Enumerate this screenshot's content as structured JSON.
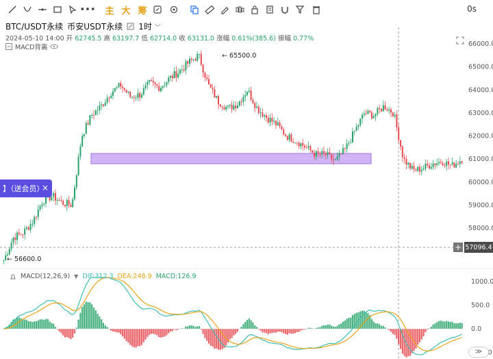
{
  "toolbar": {
    "indicator_main": "主",
    "indicator_big": "大",
    "indicator_chip": "筹",
    "more_label": "•••"
  },
  "interval": "0s",
  "title": {
    "symbol": "BTC/USDT永续",
    "exchange": "币安USDT永续",
    "timeframe": "1时"
  },
  "ohlc": {
    "date": "2024-05-10 14:00",
    "open_label": "开",
    "open": "62745.5",
    "high_label": "高",
    "high": "63197.7",
    "low_label": "低",
    "low": "62714.0",
    "close_label": "收",
    "close": "63131.0",
    "change_label": "涨幅",
    "change": "0.61%(385.6)",
    "amp_label": "振幅",
    "amp": "0.77%"
  },
  "overlay_label": "MACD背离",
  "popup": {
    "text": "】（送会员）",
    "close": "×"
  },
  "current_price": "57096.4",
  "plus_label": "+",
  "annotations": {
    "high_marker": "← 65500.0",
    "low_marker": "← 56600.0"
  },
  "price_axis": [
    "66000.0",
    "65000.0",
    "64000.0",
    "63000.0",
    "62000.0",
    "61000.0",
    "60000.0",
    "59000.0",
    "58000.0"
  ],
  "macd": {
    "name": "MACD(12,26,9)",
    "dif_label": "DIF:312.3",
    "dea_label": "DEA:248.9",
    "macd_label": "MACD:126.9",
    "axis": [
      "1000.0",
      "500.0",
      "0.0",
      "-500.0"
    ]
  },
  "scroll_label": "≫",
  "colors": {
    "up": "#26a269",
    "down": "#e5484d",
    "dif": "#3dbdb2",
    "dea": "#e8a317",
    "zone": "#c9a8f5",
    "popup": "#5b4de0"
  },
  "chart_data": {
    "type": "candlestick",
    "series": [
      {
        "name": "BTC/USDT永续",
        "approx_close_path": [
          56600,
          57600,
          57800,
          58300,
          59200,
          59400,
          59100,
          59000,
          62000,
          62900,
          63300,
          63900,
          64200,
          63700,
          63800,
          64300,
          64100,
          64500,
          64800,
          65200,
          65500,
          64200,
          63500,
          63200,
          63400,
          64000,
          63200,
          62800,
          62500,
          62000,
          61800,
          61500,
          61200,
          61200,
          60900,
          61400,
          62200,
          63000,
          62900,
          63300,
          63000,
          61000,
          60500,
          60600,
          60800,
          60900,
          60700,
          61000
        ]
      }
    ],
    "ylim": [
      56600,
      66000
    ],
    "highlight_zone": [
      60800,
      61200
    ],
    "macd_ylim": [
      -600,
      1000
    ]
  }
}
